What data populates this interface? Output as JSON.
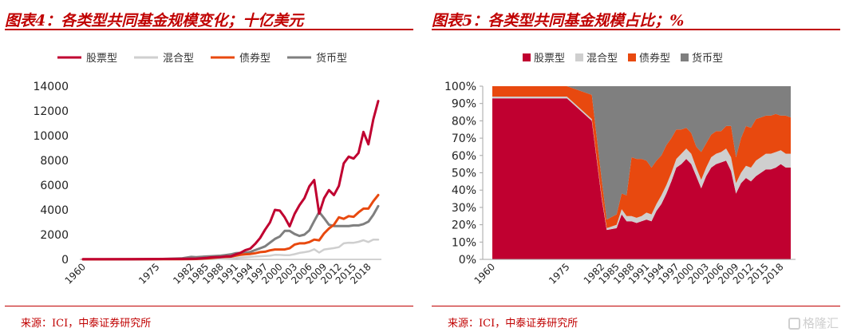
{
  "chart_data": [
    {
      "type": "line",
      "title": "图表4：各类型共同基金规模变化；十亿美元",
      "source": "来源：ICI，中泰证券研究所",
      "x": [
        1960,
        1970,
        1975,
        1980,
        1982,
        1983,
        1985,
        1986,
        1987,
        1988,
        1989,
        1990,
        1991,
        1992,
        1993,
        1994,
        1995,
        1996,
        1997,
        1998,
        1999,
        2000,
        2001,
        2002,
        2003,
        2004,
        2005,
        2006,
        2007,
        2008,
        2009,
        2010,
        2011,
        2012,
        2013,
        2014,
        2015,
        2016,
        2017,
        2018,
        2019,
        2020
      ],
      "x_tick_labels": [
        "1960",
        "1975",
        "1982",
        "1985",
        "1988",
        "1991",
        "1994",
        "1997",
        "2000",
        "2003",
        "2006",
        "2009",
        "2012",
        "2015",
        "2018"
      ],
      "legend_position": "top",
      "ylim": [
        0,
        14000
      ],
      "y_ticks": [
        0,
        2000,
        4000,
        6000,
        8000,
        10000,
        12000,
        14000
      ],
      "series": [
        {
          "name": "股票型",
          "color": "#c00030",
          "values": [
            10,
            20,
            30,
            40,
            50,
            60,
            110,
            160,
            180,
            190,
            240,
            240,
            400,
            530,
            750,
            870,
            1250,
            1730,
            2400,
            2980,
            4000,
            3940,
            3400,
            2670,
            3680,
            4380,
            4940,
            5910,
            6410,
            3700,
            4950,
            5600,
            5200,
            5940,
            7760,
            8300,
            8150,
            8600,
            10300,
            9300,
            11300,
            12800
          ]
        },
        {
          "name": "混合型",
          "color": "#cfcfcf",
          "values": [
            1,
            2,
            3,
            5,
            6,
            7,
            10,
            20,
            40,
            50,
            60,
            80,
            100,
            140,
            170,
            200,
            230,
            250,
            280,
            300,
            370,
            360,
            340,
            340,
            420,
            520,
            580,
            650,
            820,
            550,
            800,
            850,
            910,
            990,
            1300,
            1350,
            1340,
            1420,
            1550,
            1400,
            1600,
            1600
          ]
        },
        {
          "name": "债券型",
          "color": "#e8490f",
          "values": [
            5,
            10,
            15,
            20,
            25,
            30,
            80,
            100,
            150,
            190,
            200,
            220,
            300,
            370,
            410,
            440,
            500,
            590,
            620,
            730,
            800,
            800,
            800,
            900,
            1200,
            1300,
            1300,
            1400,
            1600,
            1540,
            2100,
            2500,
            2800,
            3400,
            3280,
            3500,
            3440,
            3800,
            4100,
            4100,
            4700,
            5200
          ]
        },
        {
          "name": "货币型",
          "color": "#7f7f7f",
          "values": [
            2,
            5,
            10,
            80,
            200,
            180,
            230,
            250,
            280,
            300,
            350,
            400,
            500,
            520,
            540,
            600,
            750,
            900,
            1050,
            1350,
            1650,
            1850,
            2300,
            2300,
            2050,
            1900,
            2000,
            2350,
            3100,
            3830,
            3330,
            2800,
            2700,
            2700,
            2700,
            2700,
            2750,
            2750,
            2850,
            3050,
            3600,
            4300
          ]
        }
      ]
    },
    {
      "type": "area",
      "title": "图表5：各类型共同基金规模占比；%",
      "source": "来源：ICI，中泰证券研究所",
      "x": [
        1960,
        1970,
        1975,
        1980,
        1982,
        1983,
        1985,
        1986,
        1987,
        1988,
        1989,
        1990,
        1991,
        1992,
        1993,
        1994,
        1995,
        1996,
        1997,
        1998,
        1999,
        2000,
        2001,
        2002,
        2003,
        2004,
        2005,
        2006,
        2007,
        2008,
        2009,
        2010,
        2011,
        2012,
        2013,
        2014,
        2015,
        2016,
        2017,
        2018,
        2019,
        2020
      ],
      "x_tick_labels": [
        "1960",
        "1975",
        "1982",
        "1985",
        "1988",
        "1991",
        "1994",
        "1997",
        "2000",
        "2003",
        "2006",
        "2009",
        "2012",
        "2015",
        "2018"
      ],
      "legend_position": "top",
      "ylim": [
        0,
        100
      ],
      "y_tick_labels": [
        "0%",
        "10%",
        "20%",
        "30%",
        "40%",
        "50%",
        "60%",
        "70%",
        "80%",
        "90%",
        "100%"
      ],
      "series": [
        {
          "name": "股票型",
          "color": "#c00030",
          "values": [
            93,
            93,
            93,
            80,
            35,
            17,
            18,
            26,
            22,
            22,
            21,
            22,
            23,
            22,
            28,
            32,
            38,
            45,
            53,
            55,
            58,
            55,
            48,
            41,
            48,
            53,
            55,
            56,
            57,
            51,
            38,
            44,
            47,
            45,
            48,
            50,
            52,
            52,
            53,
            55,
            53,
            53
          ]
        },
        {
          "name": "混合型",
          "color": "#cfcfcf",
          "values": [
            1,
            1,
            1,
            1,
            1,
            1,
            2,
            3,
            3,
            3,
            3,
            3,
            4,
            4,
            4,
            5,
            5,
            5,
            5,
            6,
            6,
            6,
            5,
            5,
            5,
            6,
            6,
            6,
            7,
            8,
            6,
            6,
            7,
            8,
            9,
            9,
            9,
            9,
            9,
            8,
            8,
            8
          ]
        },
        {
          "name": "债券型",
          "color": "#e8490f",
          "values": [
            6,
            6,
            6,
            14,
            10,
            5,
            6,
            9,
            12,
            34,
            34,
            33,
            30,
            27,
            25,
            23,
            23,
            20,
            17,
            14,
            12,
            12,
            12,
            16,
            14,
            13,
            13,
            12,
            13,
            18,
            15,
            20,
            23,
            23,
            24,
            23,
            22,
            22,
            22,
            20,
            22,
            21
          ]
        },
        {
          "name": "货币型",
          "color": "#7f7f7f",
          "values": [
            0,
            0,
            0,
            5,
            54,
            77,
            74,
            62,
            63,
            41,
            42,
            42,
            43,
            47,
            43,
            40,
            34,
            30,
            25,
            25,
            24,
            27,
            35,
            38,
            33,
            28,
            26,
            26,
            23,
            23,
            41,
            30,
            23,
            24,
            19,
            18,
            17,
            17,
            16,
            17,
            17,
            18
          ]
        }
      ]
    }
  ],
  "watermark": "格隆汇"
}
